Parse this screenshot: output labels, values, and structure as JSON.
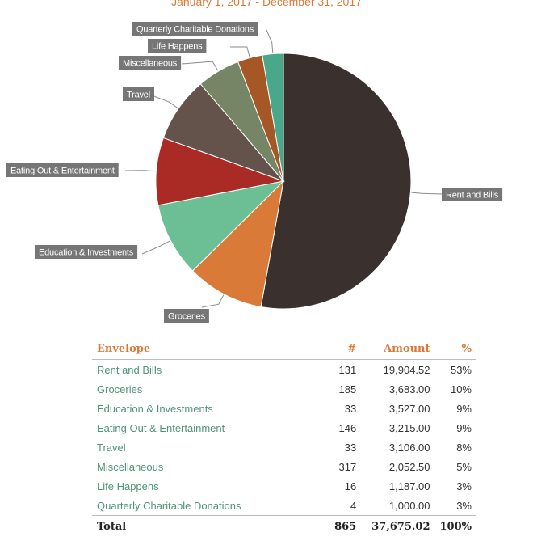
{
  "header": {
    "date_range": "January 1, 2017 - December 31, 2017"
  },
  "chart_data": {
    "type": "pie",
    "title": "",
    "slices": [
      {
        "label": "Rent and Bills",
        "value": 19904.52,
        "color": "#3a302d"
      },
      {
        "label": "Groceries",
        "value": 3683.0,
        "color": "#d97a38"
      },
      {
        "label": "Education & Investments",
        "value": 3527.0,
        "color": "#6cbf94"
      },
      {
        "label": "Eating Out & Entertainment",
        "value": 3215.0,
        "color": "#aa2a26"
      },
      {
        "label": "Travel",
        "value": 3106.0,
        "color": "#64534b"
      },
      {
        "label": "Miscellaneous",
        "value": 2052.5,
        "color": "#768566"
      },
      {
        "label": "Life Happens",
        "value": 1187.0,
        "color": "#a65726"
      },
      {
        "label": "Quarterly Charitable Donations",
        "value": 1000.0,
        "color": "#4aa88a"
      }
    ]
  },
  "table": {
    "headers": {
      "envelope": "Envelope",
      "count": "#",
      "amount": "Amount",
      "percent": "%"
    },
    "rows": [
      {
        "envelope": "Rent and Bills",
        "count": "131",
        "amount": "19,904.52",
        "percent": "53%"
      },
      {
        "envelope": "Groceries",
        "count": "185",
        "amount": "3,683.00",
        "percent": "10%"
      },
      {
        "envelope": "Education & Investments",
        "count": "33",
        "amount": "3,527.00",
        "percent": "9%"
      },
      {
        "envelope": "Eating Out & Entertainment",
        "count": "146",
        "amount": "3,215.00",
        "percent": "9%"
      },
      {
        "envelope": "Travel",
        "count": "33",
        "amount": "3,106.00",
        "percent": "8%"
      },
      {
        "envelope": "Miscellaneous",
        "count": "317",
        "amount": "2,052.50",
        "percent": "5%"
      },
      {
        "envelope": "Life Happens",
        "count": "16",
        "amount": "1,187.00",
        "percent": "3%"
      },
      {
        "envelope": "Quarterly Charitable Donations",
        "count": "4",
        "amount": "1,000.00",
        "percent": "3%"
      }
    ],
    "total": {
      "label": "Total",
      "count": "865",
      "amount": "37,675.02",
      "percent": "100%"
    }
  }
}
